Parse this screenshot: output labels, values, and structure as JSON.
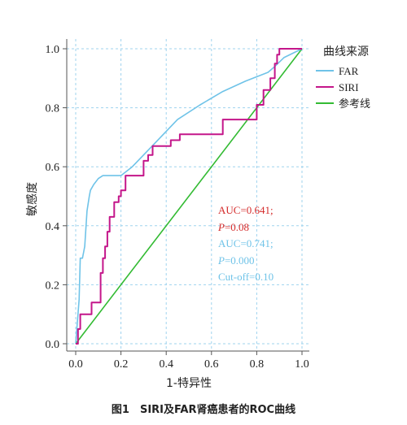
{
  "chart_data": {
    "type": "line",
    "xlabel": "1-特异性",
    "ylabel": "敏感度",
    "xlim": [
      0,
      1
    ],
    "ylim": [
      0,
      1
    ],
    "x_ticks": [
      "0.0",
      "0.2",
      "0.4",
      "0.6",
      "0.8",
      "1.0"
    ],
    "y_ticks": [
      "0.0",
      "0.2",
      "0.4",
      "0.6",
      "0.8",
      "1.0"
    ],
    "grid": true,
    "legend_title": "曲线来源",
    "legend_position": "top-right",
    "series": [
      {
        "name": "FAR",
        "color": "#6fc3e8",
        "x": [
          0.0,
          0.01,
          0.015,
          0.02,
          0.03,
          0.035,
          0.04,
          0.05,
          0.06,
          0.065,
          0.08,
          0.1,
          0.12,
          0.2,
          0.25,
          0.35,
          0.45,
          0.55,
          0.65,
          0.75,
          0.85,
          0.88,
          0.92,
          1.0
        ],
        "y": [
          0.0,
          0.1,
          0.15,
          0.29,
          0.29,
          0.31,
          0.33,
          0.45,
          0.5,
          0.52,
          0.54,
          0.56,
          0.57,
          0.57,
          0.6,
          0.68,
          0.76,
          0.81,
          0.855,
          0.89,
          0.92,
          0.94,
          0.97,
          1.0
        ]
      },
      {
        "name": "SIRI",
        "color": "#c4168a",
        "x": [
          0.0,
          0.01,
          0.01,
          0.02,
          0.02,
          0.07,
          0.07,
          0.11,
          0.11,
          0.12,
          0.12,
          0.13,
          0.13,
          0.14,
          0.14,
          0.15,
          0.15,
          0.17,
          0.17,
          0.19,
          0.19,
          0.2,
          0.2,
          0.22,
          0.22,
          0.3,
          0.3,
          0.32,
          0.32,
          0.34,
          0.34,
          0.42,
          0.42,
          0.46,
          0.46,
          0.65,
          0.65,
          0.8,
          0.8,
          0.83,
          0.83,
          0.86,
          0.86,
          0.88,
          0.88,
          0.89,
          0.89,
          0.9,
          0.9,
          1.0
        ],
        "y": [
          0.0,
          0.0,
          0.05,
          0.05,
          0.1,
          0.1,
          0.14,
          0.14,
          0.24,
          0.24,
          0.29,
          0.29,
          0.33,
          0.33,
          0.38,
          0.38,
          0.43,
          0.43,
          0.48,
          0.48,
          0.5,
          0.5,
          0.52,
          0.52,
          0.57,
          0.57,
          0.62,
          0.62,
          0.64,
          0.64,
          0.67,
          0.67,
          0.69,
          0.69,
          0.71,
          0.71,
          0.76,
          0.76,
          0.81,
          0.81,
          0.86,
          0.86,
          0.9,
          0.9,
          0.95,
          0.95,
          0.98,
          0.98,
          1.0,
          1.0
        ]
      },
      {
        "name": "参考线",
        "color": "#33bb33",
        "x": [
          0.0,
          1.0
        ],
        "y": [
          0.0,
          1.0
        ]
      }
    ],
    "annotations": [
      {
        "text": "AUC=0.641;",
        "color": "#d42a2a"
      },
      {
        "text": "P=0.08",
        "color": "#d42a2a"
      },
      {
        "text": "AUC=0.741;",
        "color": "#6fc3e8"
      },
      {
        "text": "P=0.000",
        "color": "#6fc3e8"
      },
      {
        "text": "Cut-off=0.10",
        "color": "#6fc3e8"
      }
    ]
  },
  "caption": "图1　SIRI及FAR肾癌患者的ROC曲线"
}
